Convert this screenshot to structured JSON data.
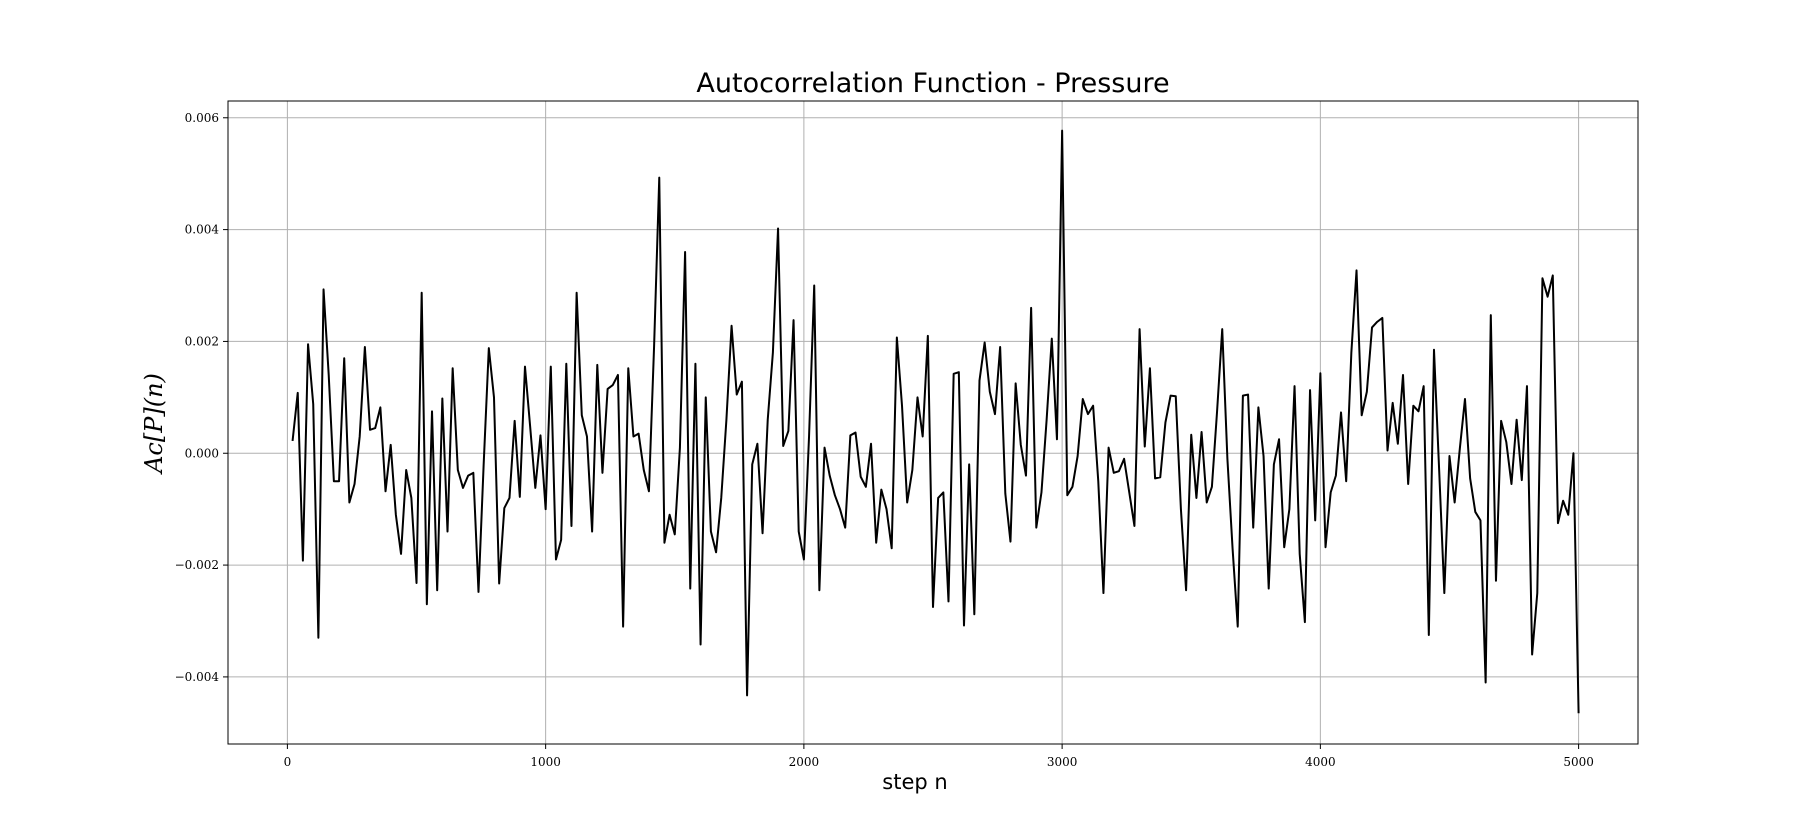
{
  "chart_data": {
    "type": "line",
    "title": "Autocorrelation Function - Pressure",
    "xlabel": "step n",
    "ylabel": "Ac[P](n)",
    "xlim": [
      -230,
      5230
    ],
    "ylim": [
      -0.0052,
      0.0063
    ],
    "xticks": [
      0,
      1000,
      2000,
      3000,
      4000,
      5000
    ],
    "xtick_labels": [
      "0",
      "1000",
      "2000",
      "3000",
      "4000",
      "5000"
    ],
    "yticks": [
      -0.004,
      -0.002,
      0.0,
      0.002,
      0.004,
      0.006
    ],
    "ytick_labels": [
      "−0.004",
      "−0.002",
      "0.000",
      "0.002",
      "0.004",
      "0.006"
    ],
    "grid": true,
    "line_color": "#000000",
    "series": [
      {
        "x": [
          20,
          40,
          60,
          80,
          100,
          120,
          140,
          160,
          180,
          200,
          220,
          240,
          260,
          280,
          300,
          320,
          340,
          360,
          380,
          400,
          420,
          440,
          460,
          480,
          500,
          520,
          540,
          560,
          580,
          600,
          620,
          640,
          660,
          680,
          700,
          720,
          740,
          760,
          780,
          800,
          820,
          840,
          860,
          880,
          900,
          920,
          940,
          960,
          980,
          1000,
          1020,
          1040,
          1060,
          1080,
          1100,
          1120,
          1140,
          1160,
          1180,
          1200,
          1220,
          1240,
          1260,
          1280,
          1300,
          1320,
          1340,
          1360,
          1380,
          1400,
          1420,
          1440,
          1460,
          1480,
          1500,
          1520,
          1540,
          1560,
          1580,
          1600,
          1620,
          1640,
          1660,
          1680,
          1700,
          1720,
          1740,
          1760,
          1780,
          1800,
          1820,
          1840,
          1860,
          1880,
          1900,
          1920,
          1940,
          1960,
          1980,
          2000,
          2020,
          2040,
          2060,
          2080,
          2100,
          2120,
          2140,
          2160,
          2180,
          2200,
          2220,
          2240,
          2260,
          2280,
          2300,
          2320,
          2340,
          2360,
          2380,
          2400,
          2420,
          2440,
          2460,
          2480,
          2500,
          2520,
          2540,
          2560,
          2580,
          2600,
          2620,
          2640,
          2660,
          2680,
          2700,
          2720,
          2740,
          2760,
          2780,
          2800,
          2820,
          2840,
          2860,
          2880,
          2900,
          2920,
          2940,
          2960,
          2980,
          3000,
          3020,
          3040,
          3060,
          3080,
          3100,
          3120,
          3140,
          3160,
          3180,
          3200,
          3220,
          3240,
          3260,
          3280,
          3300,
          3320,
          3340,
          3360,
          3380,
          3400,
          3420,
          3440,
          3460,
          3480,
          3500,
          3520,
          3540,
          3560,
          3580,
          3600,
          3620,
          3640,
          3660,
          3680,
          3700,
          3720,
          3740,
          3760,
          3780,
          3800,
          3820,
          3840,
          3860,
          3880,
          3900,
          3920,
          3940,
          3960,
          3980,
          4000,
          4020,
          4040,
          4060,
          4080,
          4100,
          4120,
          4140,
          4160,
          4180,
          4200,
          4220,
          4240,
          4260,
          4280,
          4300,
          4320,
          4340,
          4360,
          4380,
          4400,
          4420,
          4440,
          4460,
          4480,
          4500,
          4520,
          4540,
          4560,
          4580,
          4600,
          4620,
          4640,
          4660,
          4680,
          4700,
          4720,
          4740,
          4760,
          4780,
          4800,
          4820,
          4840,
          4860,
          4880,
          4900,
          4920,
          4940,
          4960,
          4980,
          5000
        ],
        "values": [
          0.00022,
          0.00108,
          -0.00192,
          0.00195,
          0.00088,
          -0.0033,
          0.00293,
          0.0014,
          -0.0005,
          -0.0005,
          0.0017,
          -0.00088,
          -0.00055,
          0.0003,
          0.0019,
          0.00042,
          0.00045,
          0.00082,
          -0.00068,
          0.00015,
          -0.0011,
          -0.0018,
          -0.0003,
          -0.0008,
          -0.00232,
          0.00287,
          -0.0027,
          0.00075,
          -0.00245,
          0.00098,
          -0.0014,
          0.00152,
          -0.0003,
          -0.00062,
          -0.0004,
          -0.00035,
          -0.00248,
          -0.0002,
          0.00188,
          0.001,
          -0.00233,
          -0.00098,
          -0.0008,
          0.00058,
          -0.00078,
          0.00155,
          0.00048,
          -0.00062,
          0.00032,
          -0.001,
          0.00155,
          -0.0019,
          -0.00155,
          0.0016,
          -0.0013,
          0.00287,
          0.00068,
          0.0003,
          -0.0014,
          0.00158,
          -0.00035,
          0.00115,
          0.00122,
          0.0014,
          -0.0031,
          0.00152,
          0.0003,
          0.00035,
          -0.0003,
          -0.00068,
          0.00192,
          0.00493,
          -0.0016,
          -0.0011,
          -0.00145,
          0.0001,
          0.0036,
          -0.00242,
          0.0016,
          -0.00342,
          0.001,
          -0.0014,
          -0.00177,
          -0.0008,
          0.0006,
          0.00228,
          0.00105,
          0.00128,
          -0.00433,
          -0.0002,
          0.00017,
          -0.00143,
          0.0006,
          0.0018,
          0.00402,
          0.00013,
          0.0004,
          0.00238,
          -0.0014,
          -0.0019,
          0.0003,
          0.003,
          -0.00245,
          0.0001,
          -0.0004,
          -0.00075,
          -0.001,
          -0.00133,
          0.00032,
          0.00037,
          -0.00042,
          -0.0006,
          0.00017,
          -0.0016,
          -0.00065,
          -0.001,
          -0.0017,
          0.00207,
          0.00085,
          -0.00088,
          -0.0003,
          0.001,
          0.0003,
          0.0021,
          -0.00275,
          -0.0008,
          -0.0007,
          -0.00265,
          0.00142,
          0.00145,
          -0.00308,
          -0.0002,
          -0.00288,
          0.0013,
          0.00198,
          0.0011,
          0.0007,
          0.0019,
          -0.00072,
          -0.00158,
          0.00125,
          0.00015,
          -0.0004,
          0.0026,
          -0.00133,
          -0.0007,
          0.0006,
          0.00205,
          0.00025,
          0.00577,
          -0.00075,
          -0.0006,
          -5e-05,
          0.00097,
          0.0007,
          0.00085,
          -0.0005,
          -0.0025,
          0.0001,
          -0.00035,
          -0.00032,
          -0.0001,
          -0.0007,
          -0.0013,
          0.00222,
          0.00012,
          0.00152,
          -0.00045,
          -0.00043,
          0.00055,
          0.00103,
          0.00102,
          -0.001,
          -0.00245,
          0.00033,
          -0.0008,
          0.00038,
          -0.00088,
          -0.0006,
          0.00075,
          0.00222,
          -0.0001,
          -0.0017,
          -0.0031,
          0.00103,
          0.00105,
          -0.00133,
          0.00082,
          -5e-05,
          -0.00242,
          -0.0002,
          0.00025,
          -0.00168,
          -0.001,
          0.0012,
          -0.0018,
          -0.00302,
          0.00113,
          -0.0012,
          0.00143,
          -0.00168,
          -0.0007,
          -0.0004,
          0.00073,
          -0.0005,
          0.0018,
          0.00327,
          0.00068,
          0.0011,
          0.00225,
          0.00235,
          0.00242,
          5e-05,
          0.0009,
          0.00017,
          0.0014,
          -0.00055,
          0.00085,
          0.00075,
          0.0012,
          -0.00325,
          0.00185,
          -0.0003,
          -0.0025,
          -5e-05,
          -0.00088,
          8e-05,
          0.00097,
          -0.00045,
          -0.00105,
          -0.0012,
          -0.0041,
          0.00247,
          -0.00228,
          0.00058,
          0.0002,
          -0.00055,
          0.0006,
          -0.00048,
          0.0012,
          -0.0036,
          -0.0025,
          0.00313,
          0.0028,
          0.00318,
          -0.00125,
          -0.00085,
          -0.0011,
          0.0,
          -0.00465
        ]
      }
    ]
  }
}
